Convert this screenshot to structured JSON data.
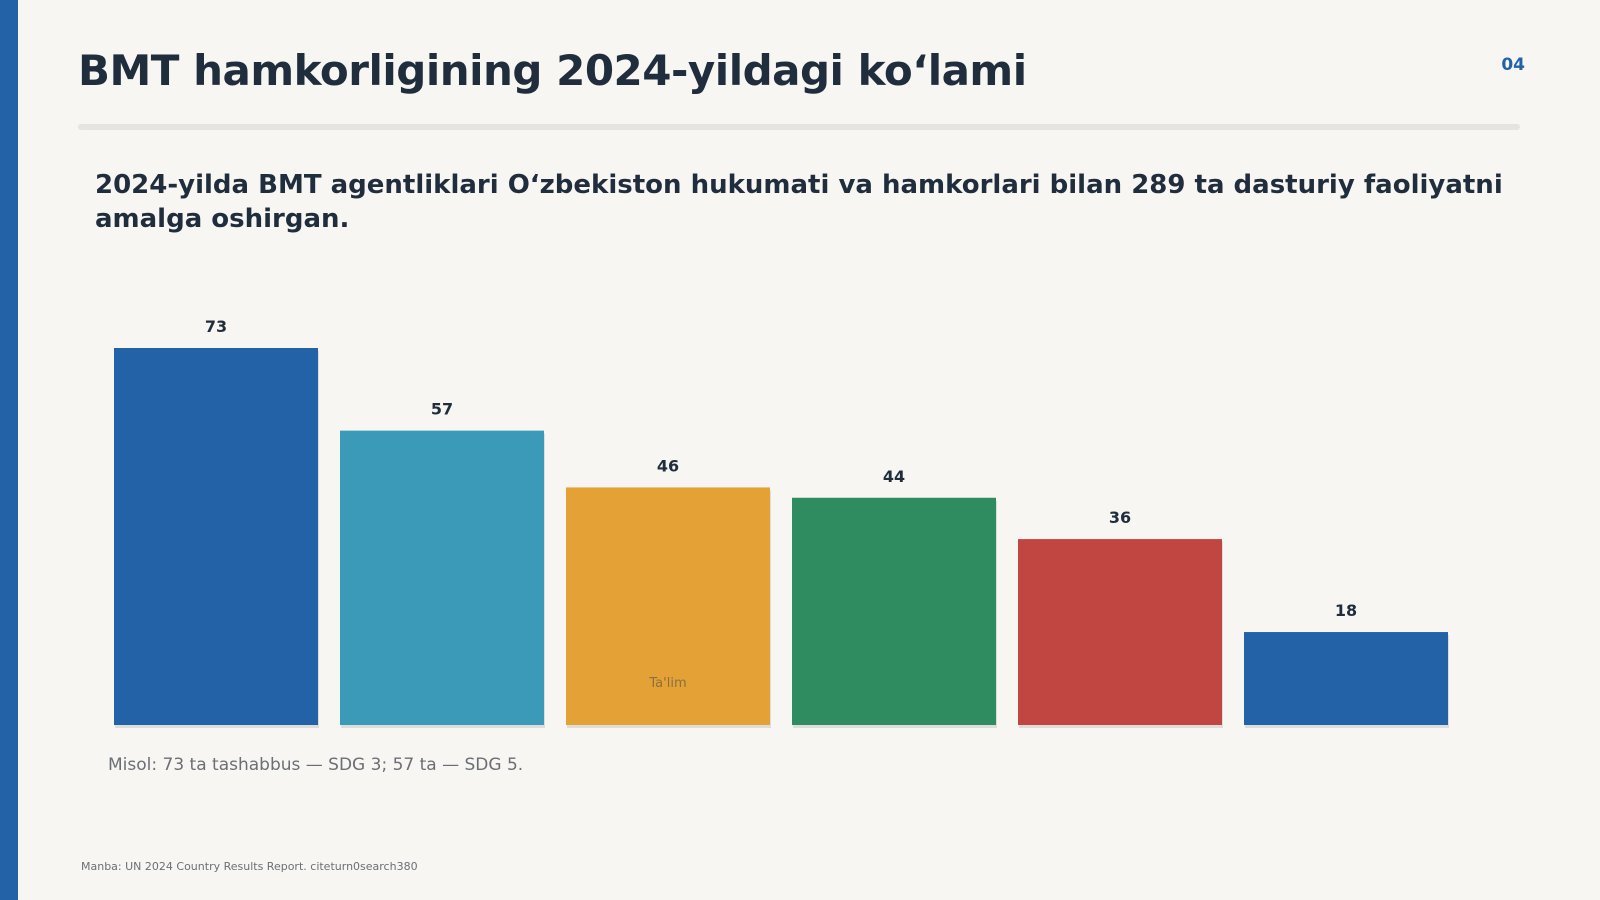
{
  "page": {
    "title": "BMT hamkorligining 2024-yildagi ko‘lami",
    "page_number": "04",
    "subtitle": "2024-yilda BMT agentliklari O‘zbekiston hukumati va hamkorlari bilan 289 ta dasturiy faoliyatni amalga oshirgan.",
    "note": "Misol: 73 ta tashabbus — SDG 3; 57 ta — SDG 5.",
    "source": "Manba: UN 2024 Country Results Report. citeturn0search380",
    "accent_color": "#2462a8"
  },
  "chart_data": {
    "type": "bar",
    "categories": [
      "",
      "",
      "Ta'lim",
      "",
      "",
      ""
    ],
    "values": [
      73,
      57,
      46,
      44,
      36,
      18
    ],
    "colors": [
      "#2462a8",
      "#3a9ab8",
      "#e4a236",
      "#2f8c60",
      "#c14642",
      "#2462a8"
    ],
    "ylim": [
      0,
      73
    ],
    "grid": false,
    "legend": "none",
    "data_labels": true
  }
}
